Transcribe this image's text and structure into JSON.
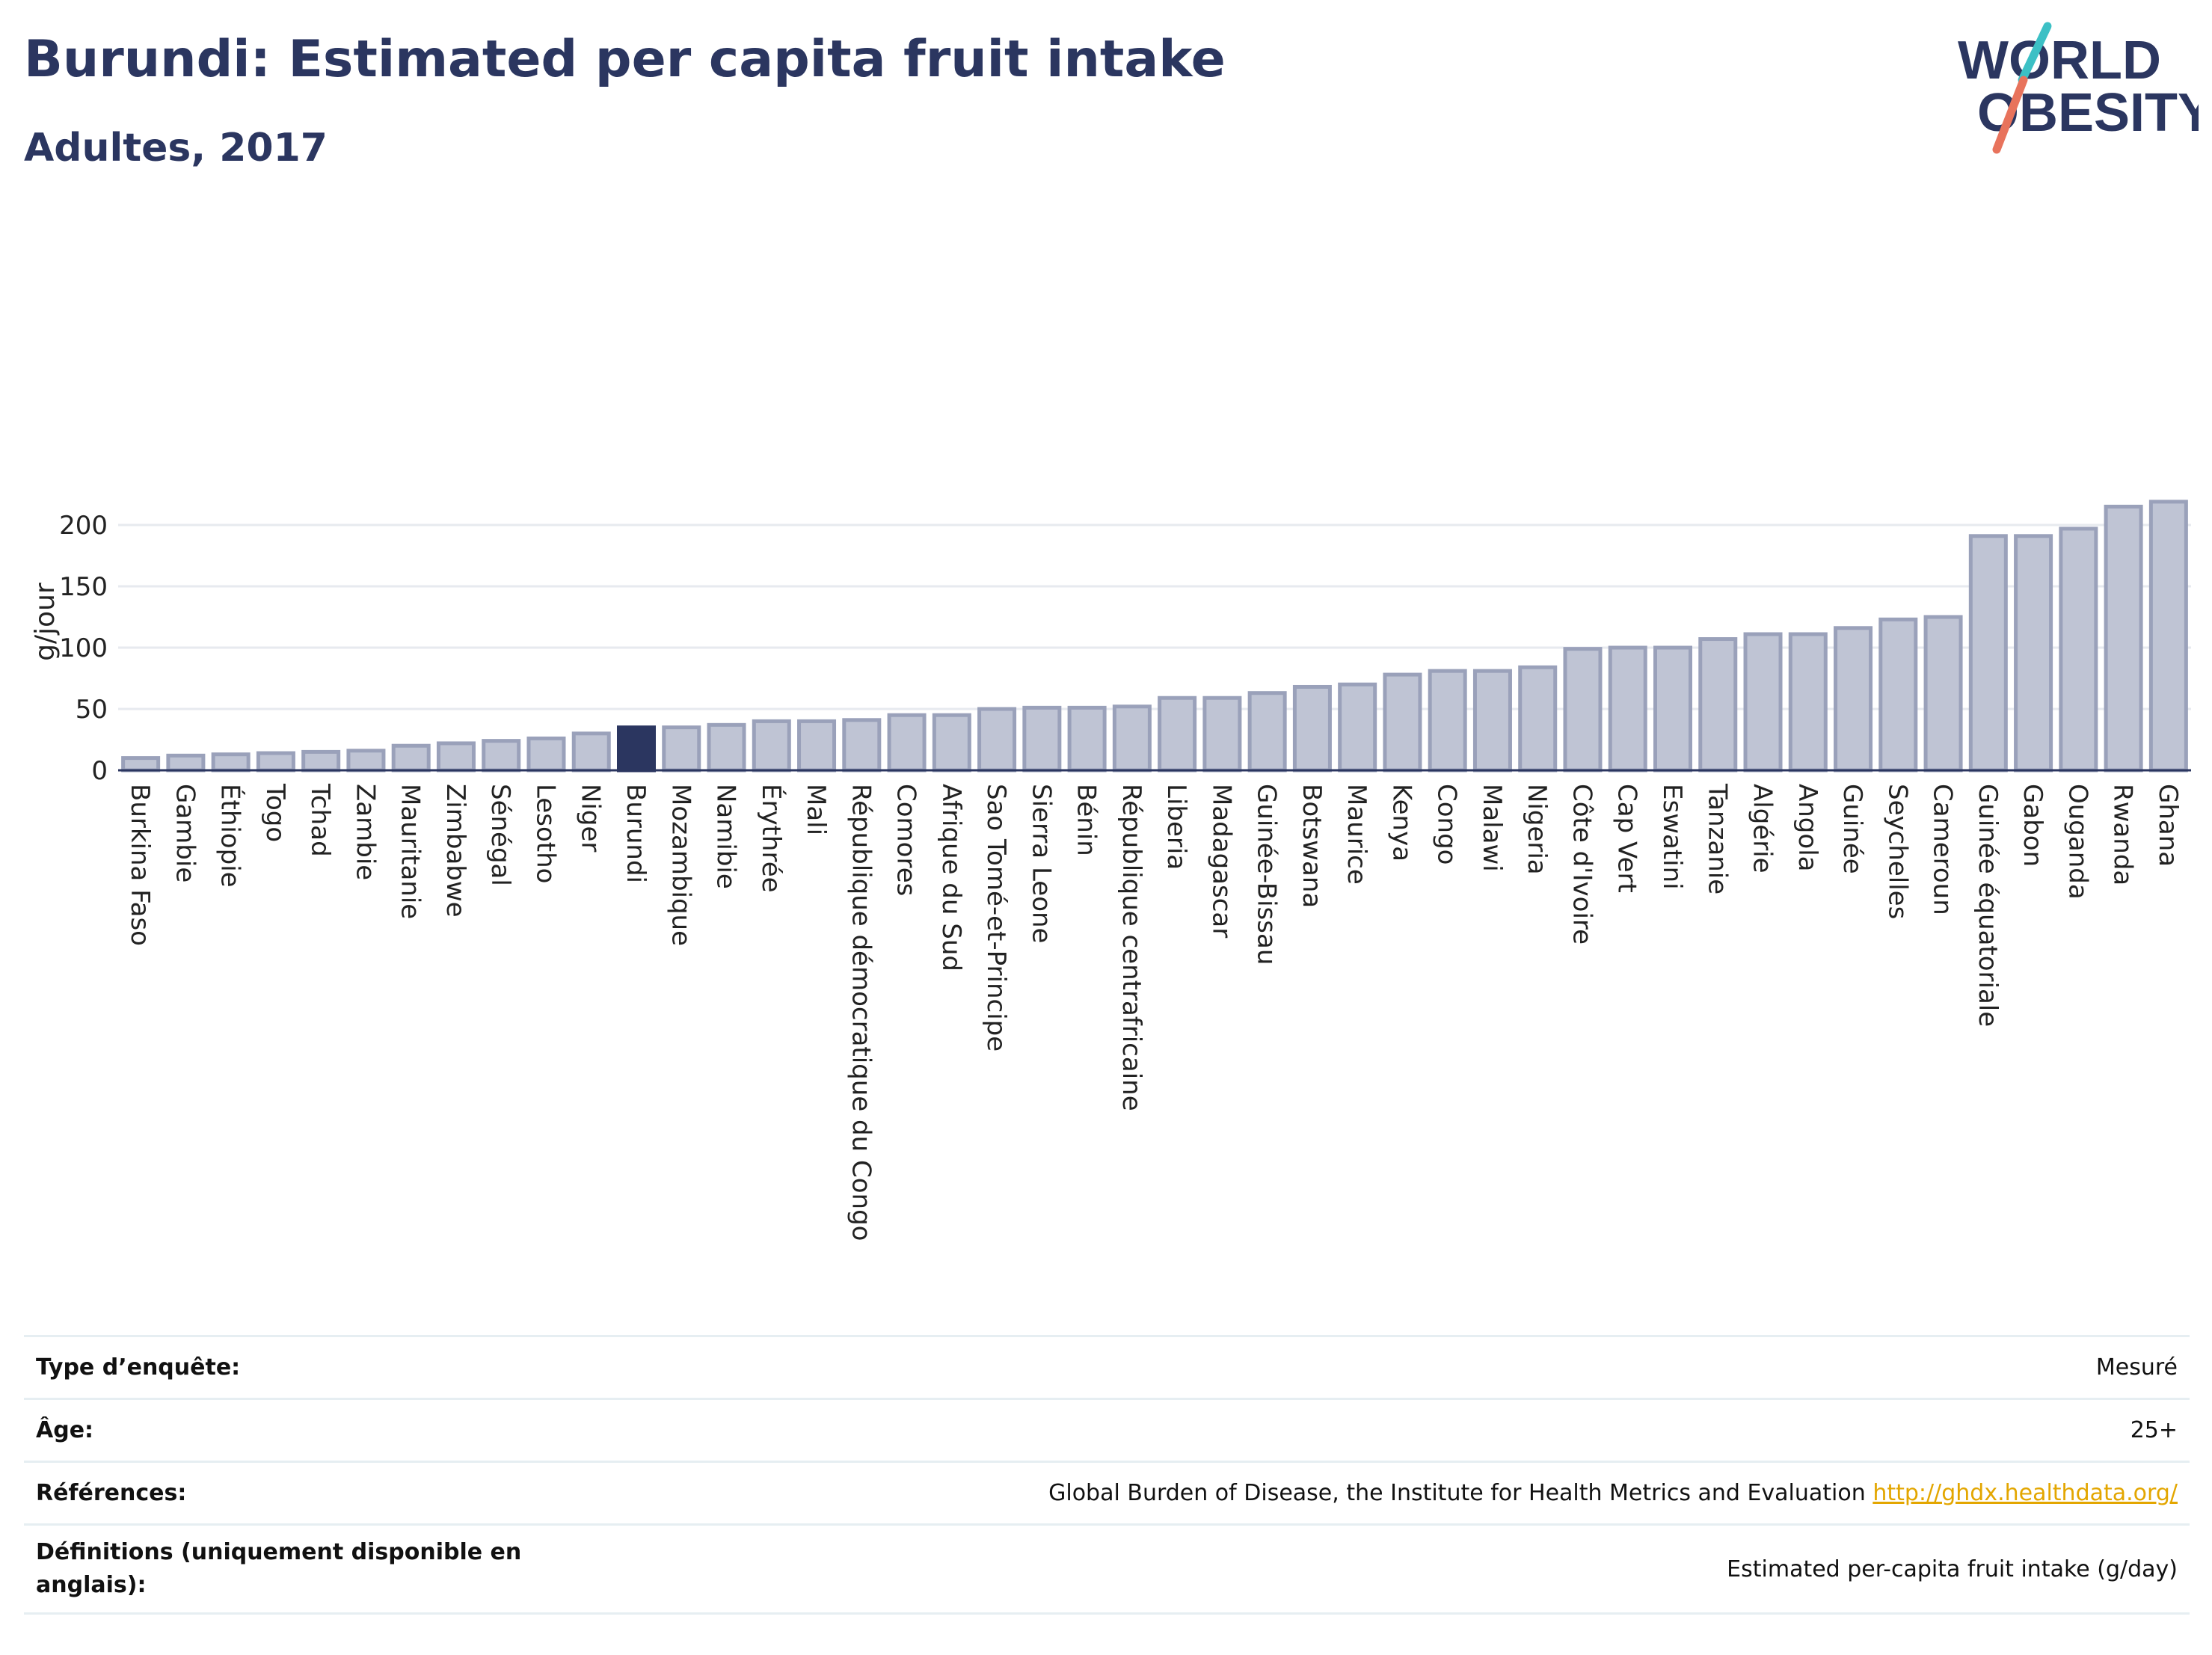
{
  "header": {
    "title": "Burundi: Estimated per capita fruit intake",
    "subtitle": "Adultes, 2017"
  },
  "logo": {
    "line1": "WORLD",
    "line2": "OBESITY",
    "slash_colors": [
      "#3cc0c5",
      "#e8735c"
    ]
  },
  "chart_data": {
    "type": "bar",
    "ylabel": "g/jour",
    "ylim": [
      0,
      220
    ],
    "yticks": [
      0,
      50,
      100,
      150,
      200
    ],
    "grid": true,
    "highlight": "Burundi",
    "colors": {
      "bar": "#bfc4d4",
      "bar_border": "#9aa1ba",
      "highlight": "#2b3660"
    },
    "categories": [
      "Burkina Faso",
      "Gambie",
      "Éthiopie",
      "Togo",
      "Tchad",
      "Zambie",
      "Mauritanie",
      "Zimbabwe",
      "Sénégal",
      "Lesotho",
      "Niger",
      "Burundi",
      "Mozambique",
      "Namibie",
      "Érythrée",
      "Mali",
      "République démocratique du Congo",
      "Comores",
      "Afrique du Sud",
      "Sao Tomé-et-Principe",
      "Sierra Leone",
      "Bénin",
      "République centrafricaine",
      "Liberia",
      "Madagascar",
      "Guinée-Bissau",
      "Botswana",
      "Maurice",
      "Kenya",
      "Congo",
      "Malawi",
      "Nigeria",
      "Côte d'Ivoire",
      "Cap Vert",
      "Eswatini",
      "Tanzanie",
      "Algérie",
      "Angola",
      "Guinée",
      "Seychelles",
      "Cameroun",
      "Guinée équatoriale",
      "Gabon",
      "Ouganda",
      "Rwanda",
      "Ghana"
    ],
    "values": [
      10,
      12,
      13,
      14,
      15,
      16,
      20,
      22,
      24,
      26,
      30,
      35,
      35,
      37,
      40,
      40,
      41,
      45,
      45,
      50,
      51,
      51,
      52,
      59,
      59,
      63,
      68,
      70,
      78,
      81,
      81,
      84,
      99,
      100,
      100,
      107,
      111,
      111,
      116,
      123,
      125,
      191,
      191,
      197,
      215,
      219
    ]
  },
  "info": [
    {
      "label": "Type d’enquête:",
      "value": "Mesuré"
    },
    {
      "label": "Âge:",
      "value": "25+"
    },
    {
      "label": "Références:",
      "value": "Global Burden of Disease, the Institute for Health Metrics and Evaluation",
      "link": "http://ghdx.healthdata.org/"
    },
    {
      "label": "Définitions (uniquement disponible en anglais):",
      "value": "Estimated per-capita fruit intake (g/day)"
    }
  ]
}
